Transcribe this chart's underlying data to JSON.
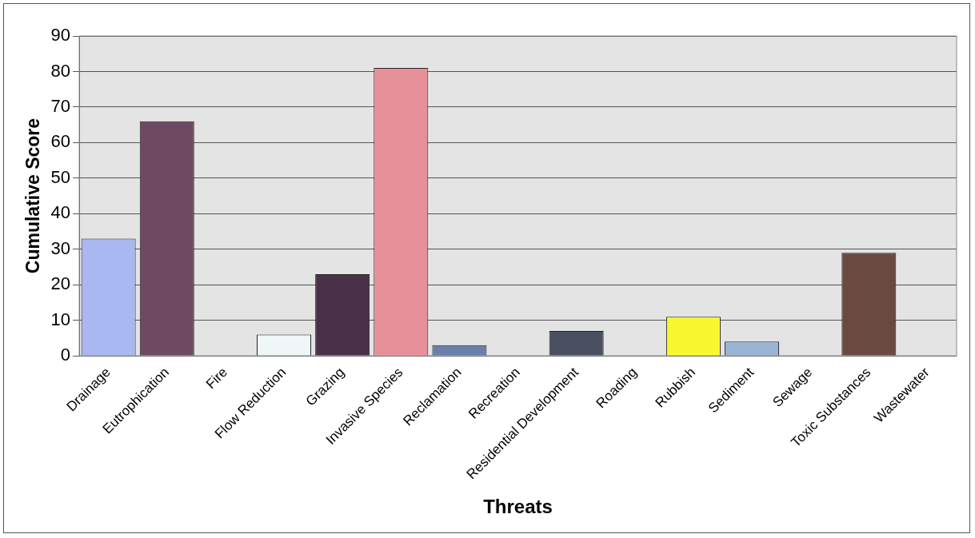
{
  "chart_data": {
    "type": "bar",
    "xlabel": "Threats",
    "ylabel": "Cumulative Score",
    "categories": [
      "Drainage",
      "Eutrophication",
      "Fire",
      "Flow Reduction",
      "Grazing",
      "Invasive Species",
      "Reclamation",
      "Recreation",
      "Residential Development",
      "Roading",
      "Rubbish",
      "Sediment",
      "Sewage",
      "Toxic Substances",
      "Wastewater"
    ],
    "values": [
      33,
      66,
      0,
      6,
      23,
      81,
      3,
      0,
      7,
      0,
      11,
      4,
      0,
      29,
      0
    ],
    "colors": [
      "#a9b8f0",
      "#6e4a62",
      "#ffffff",
      "#eef6f8",
      "#4a3048",
      "#e8909a",
      "#6a80a8",
      "#ffffff",
      "#4a5060",
      "#ffffff",
      "#f8f830",
      "#9ab4d4",
      "#ffffff",
      "#6a4a40",
      "#ffffff"
    ],
    "ylim": [
      0,
      90
    ],
    "yticks": [
      0,
      10,
      20,
      30,
      40,
      50,
      60,
      70,
      80,
      90
    ],
    "grid": "y",
    "legend": false
  }
}
